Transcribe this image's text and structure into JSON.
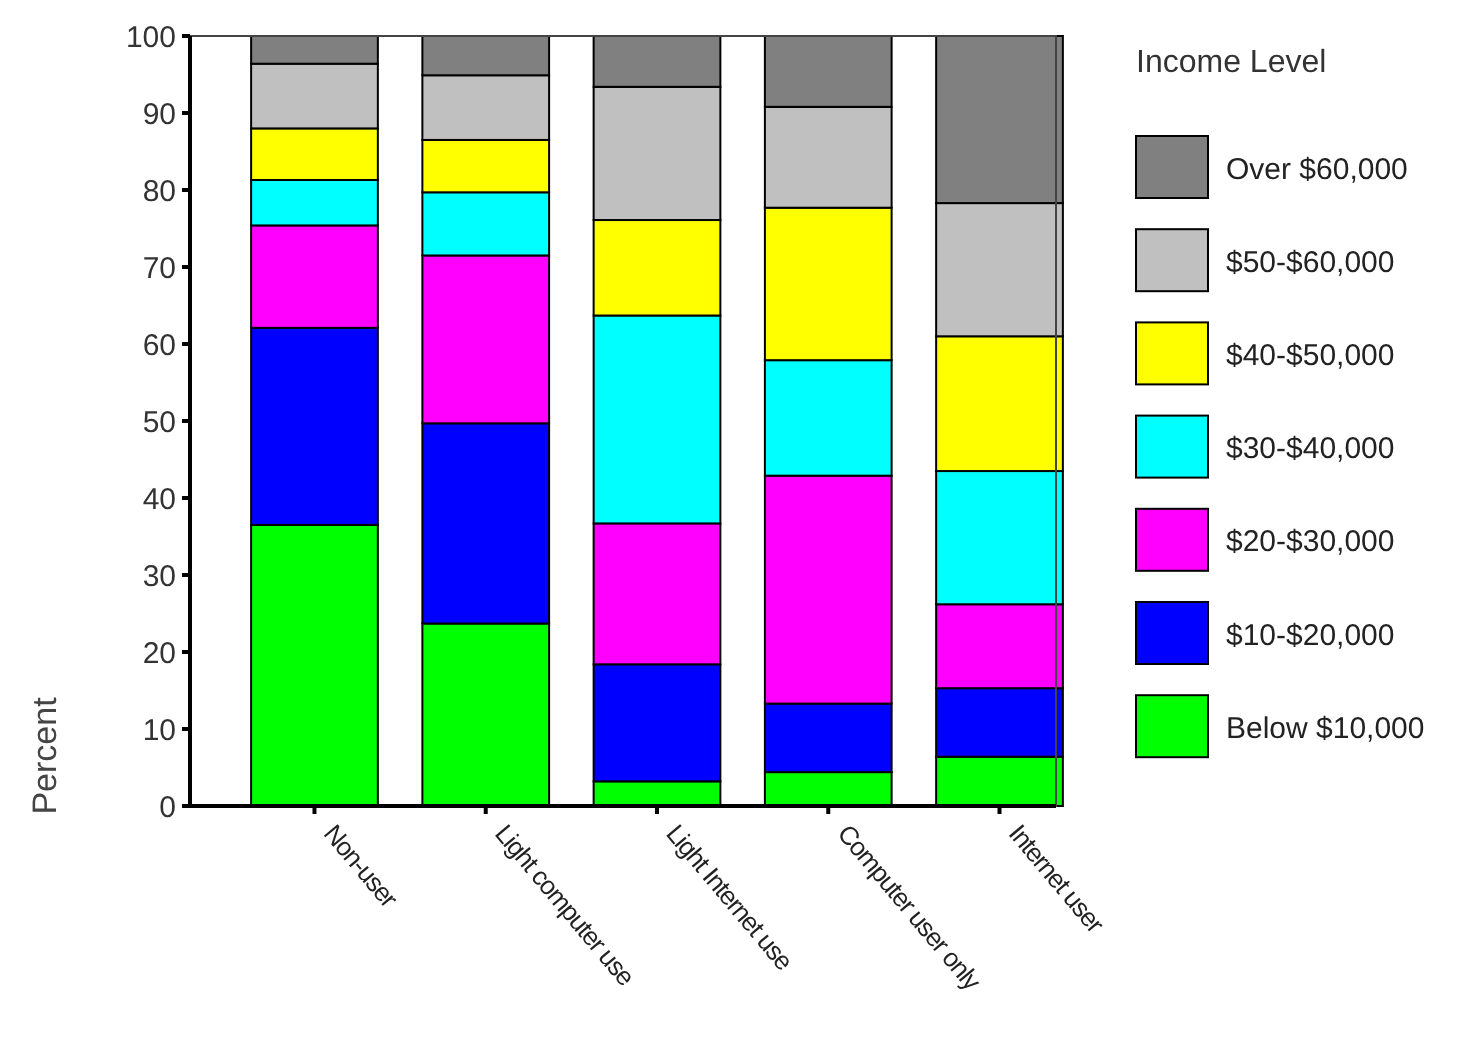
{
  "chart_data": {
    "type": "bar",
    "stacked": true,
    "ylabel": "Percent",
    "legend_title": "Income Level",
    "legend": "right",
    "categories": [
      "Non-user",
      "Light computer use",
      "Light Internet use",
      "Computer user only",
      "Internet user"
    ],
    "ylim": [
      0,
      100
    ],
    "yticks": [
      0,
      10,
      20,
      30,
      40,
      50,
      60,
      70,
      80,
      90,
      100
    ],
    "series": [
      {
        "name": "Below $10,000",
        "color": "#00ff00",
        "values": [
          36.5,
          23.7,
          3.2,
          4.4,
          6.4
        ]
      },
      {
        "name": "$10-$20,000",
        "color": "#0000ff",
        "values": [
          25.6,
          26.0,
          15.2,
          8.9,
          8.9
        ]
      },
      {
        "name": "$20-$30,000",
        "color": "#ff00ff",
        "values": [
          13.3,
          21.8,
          18.3,
          29.6,
          10.9
        ]
      },
      {
        "name": "$30-$40,000",
        "color": "#00ffff",
        "values": [
          5.9,
          8.2,
          27.0,
          15.0,
          17.3
        ]
      },
      {
        "name": "$40-$50,000",
        "color": "#ffff00",
        "values": [
          6.7,
          6.8,
          12.4,
          19.8,
          17.5
        ]
      },
      {
        "name": "$50-$60,000",
        "color": "#c0c0c0",
        "values": [
          8.4,
          8.4,
          17.3,
          13.1,
          17.3
        ]
      },
      {
        "name": "Over $60,000",
        "color": "#808080",
        "values": [
          3.6,
          5.1,
          6.6,
          9.2,
          21.7
        ]
      }
    ]
  }
}
